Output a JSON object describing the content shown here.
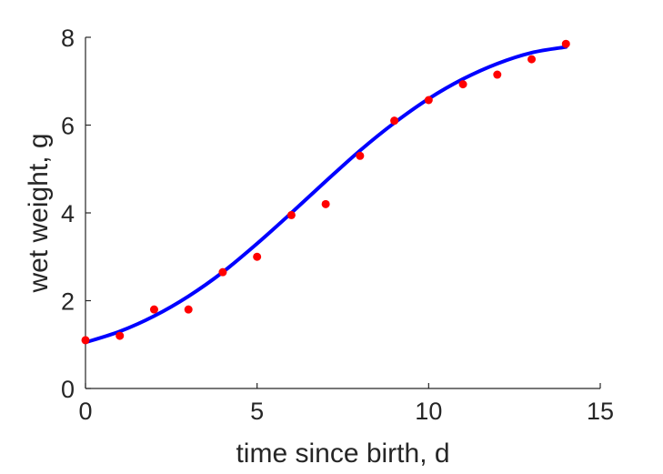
{
  "chart_data": {
    "type": "scatter",
    "title": "",
    "xlabel": "time since birth, d",
    "ylabel": "wet weight, g",
    "xlim": [
      0,
      15
    ],
    "ylim": [
      0,
      8
    ],
    "xticks": [
      0,
      5,
      10,
      15
    ],
    "yticks": [
      0,
      2,
      4,
      6,
      8
    ],
    "grid": false,
    "box": false,
    "series": [
      {
        "type": "scatter",
        "color": "#ff0000",
        "x": [
          0,
          1,
          2,
          3,
          4,
          5,
          6,
          7,
          8,
          9,
          10,
          11,
          12,
          13,
          14
        ],
        "y": [
          1.1,
          1.2,
          1.8,
          1.8,
          2.65,
          3.0,
          3.95,
          4.2,
          5.3,
          6.1,
          6.57,
          6.93,
          7.15,
          7.5,
          7.85
        ]
      },
      {
        "type": "line",
        "color": "#0000ff",
        "x": [
          0,
          1,
          2,
          3,
          4,
          5,
          6,
          7,
          8,
          9,
          10,
          11,
          12,
          13,
          14
        ],
        "y": [
          1.05,
          1.3,
          1.65,
          2.1,
          2.65,
          3.3,
          4.0,
          4.72,
          5.42,
          6.05,
          6.6,
          7.05,
          7.4,
          7.65,
          7.78
        ]
      }
    ]
  }
}
